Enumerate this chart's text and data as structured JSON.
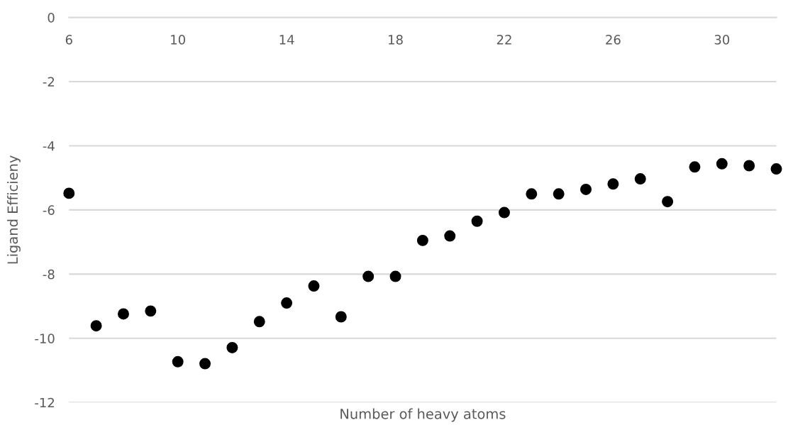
{
  "chart_data": {
    "type": "scatter",
    "xlabel": "Number of heavy atoms",
    "ylabel": "Ligand Efficieny",
    "x": [
      6,
      7,
      8,
      9,
      10,
      11,
      12,
      13,
      14,
      15,
      16,
      17,
      18,
      19,
      20,
      21,
      22,
      23,
      24,
      25,
      26,
      27,
      28,
      29,
      30,
      31,
      32
    ],
    "series": [
      {
        "color": "#000000",
        "values": [
          -5.48,
          -9.61,
          -9.24,
          -9.15,
          -10.73,
          -10.79,
          -10.29,
          -9.48,
          -8.9,
          -8.37,
          -9.33,
          -8.07,
          -8.07,
          -6.95,
          -6.81,
          -6.35,
          -6.08,
          -5.5,
          -5.5,
          -5.36,
          -5.19,
          -5.03,
          -5.74,
          -4.66,
          -4.56,
          -4.62,
          -4.72
        ]
      }
    ],
    "xlim": [
      6,
      32
    ],
    "xticks": [
      6,
      10,
      14,
      18,
      22,
      26,
      30
    ],
    "ylim": [
      -12,
      0
    ],
    "yticks": [
      0,
      -2,
      -4,
      -6,
      -8,
      -10,
      -12
    ],
    "grid": "y",
    "marker": "circle",
    "legend": false
  }
}
